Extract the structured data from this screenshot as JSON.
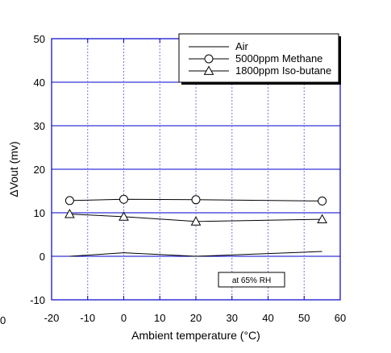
{
  "chart_data": {
    "type": "line",
    "xlabel": "Ambient temperature (°C)",
    "ylabel": "ΔVout (mv)",
    "xlim": [
      -20,
      60
    ],
    "ylim": [
      -10,
      50
    ],
    "xticks": [
      -20,
      -10,
      0,
      10,
      20,
      30,
      40,
      50,
      60
    ],
    "yticks": [
      -10,
      0,
      10,
      20,
      30,
      40,
      50
    ],
    "grid": true,
    "legend_position": "top-right",
    "series": [
      {
        "name": "Air",
        "marker": "none",
        "x": [
          -15,
          0,
          20,
          55
        ],
        "y": [
          0,
          0.8,
          0,
          1.1
        ]
      },
      {
        "name": "5000ppm Methane",
        "marker": "circle",
        "x": [
          -15,
          0,
          20,
          55
        ],
        "y": [
          12.8,
          13.1,
          13.0,
          12.7
        ]
      },
      {
        "name": "1800ppm Iso-butane",
        "marker": "triangle",
        "x": [
          -15,
          0,
          20,
          55
        ],
        "y": [
          9.7,
          9.1,
          8.0,
          8.5
        ]
      }
    ],
    "annotation": "at 65% RH",
    "colors": {
      "axis": "#0000cc",
      "grid": "#7777dd",
      "data": "#000000"
    }
  },
  "stray_text": "0"
}
